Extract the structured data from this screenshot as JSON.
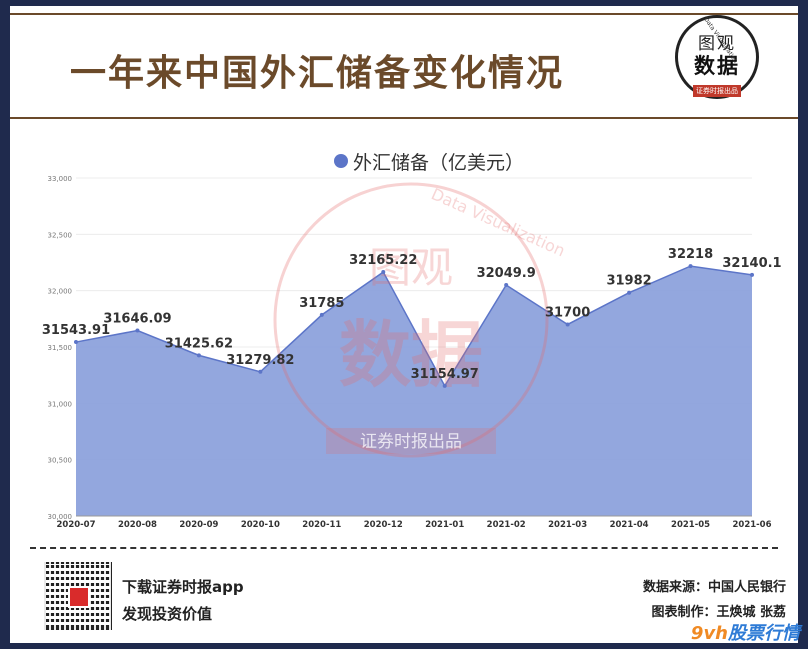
{
  "header": {
    "title": "一年来中国外汇储备变化情况"
  },
  "logo": {
    "line1": "图观",
    "line2": "数据",
    "tagline": "证券时报出品",
    "arc_text": "Data Visualization"
  },
  "footer": {
    "promo_line1": "下载证券时报app",
    "promo_line2": "发现投资价值",
    "source": "数据来源：中国人民银行",
    "credit": "图表制作：王焕城 张荔",
    "corner_mark_num": "9vh",
    "corner_mark_text": "股票行情"
  },
  "colors": {
    "area": "#8a9fdb",
    "line": "#5c75c8",
    "brand": "#6b4a2a",
    "watermark": "#e46a6a"
  },
  "chart_data": {
    "type": "area",
    "title": "",
    "legend": "外汇储备（亿美元）",
    "legend_position": "top-center",
    "grid": true,
    "ylim": [
      30000,
      33000
    ],
    "y_ticks": [
      "30,000",
      "30,500",
      "31,000",
      "31,500",
      "32,000",
      "32,500",
      "33,000"
    ],
    "y_tick_values": [
      30000,
      30500,
      31000,
      31500,
      32000,
      32500,
      33000
    ],
    "categories": [
      "2020-07",
      "2020-08",
      "2020-09",
      "2020-10",
      "2020-11",
      "2020-12",
      "2021-01",
      "2021-02",
      "2021-03",
      "2021-04",
      "2021-05",
      "2021-06"
    ],
    "series": [
      {
        "name": "外汇储备（亿美元）",
        "values": [
          31543.91,
          31646.09,
          31425.62,
          31279.82,
          31785,
          32165.22,
          31154.97,
          32049.9,
          31700,
          31982,
          32218,
          32140.1
        ],
        "labels": [
          "31543.91",
          "31646.09",
          "31425.62",
          "31279.82",
          "31785",
          "32165.22",
          "31154.97",
          "32049.9",
          "31700",
          "31982",
          "32218",
          "32140.1"
        ]
      }
    ],
    "watermark": {
      "top": "图观",
      "bottom": "数据",
      "band": "证券时报出品",
      "arc": "Data Visualization"
    }
  }
}
